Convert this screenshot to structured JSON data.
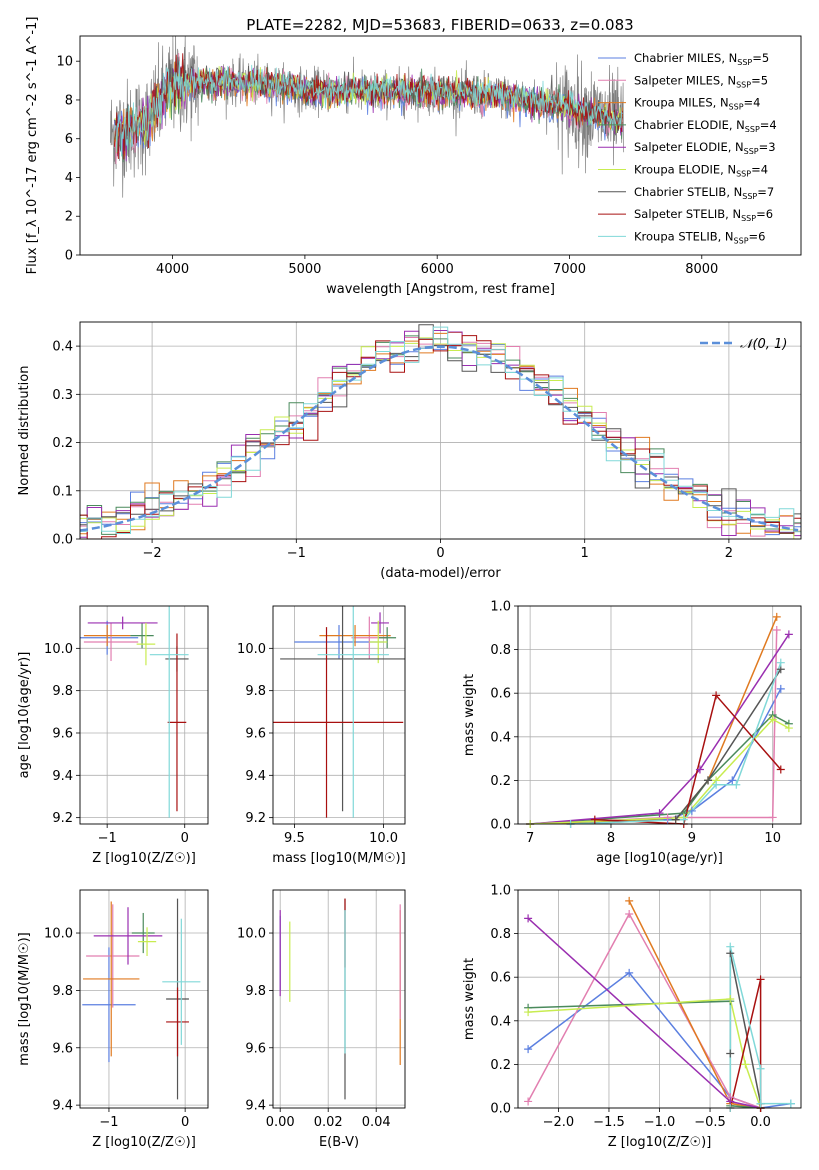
{
  "figure_title": "PLATE=2282, MJD=53683, FIBERID=0633, z=0.083",
  "models": [
    {
      "name": "Chabrier MILES",
      "nssp": "5",
      "color": "#5b7fe0"
    },
    {
      "name": "Salpeter MILES",
      "nssp": "5",
      "color": "#e27fb0"
    },
    {
      "name": "Kroupa MILES",
      "nssp": "4",
      "color": "#e07a20"
    },
    {
      "name": "Chabrier ELODIE",
      "nssp": "4",
      "color": "#4a8a5c"
    },
    {
      "name": "Salpeter ELODIE",
      "nssp": "3",
      "color": "#9a2fb0"
    },
    {
      "name": "Kroupa ELODIE",
      "nssp": "4",
      "color": "#c8ec50"
    },
    {
      "name": "Chabrier STELIB",
      "nssp": "7",
      "color": "#555555"
    },
    {
      "name": "Salpeter STELIB",
      "nssp": "6",
      "color": "#a81010"
    },
    {
      "name": "Kroupa STELIB",
      "nssp": "6",
      "color": "#80d8d8"
    }
  ],
  "chart_data": [
    {
      "id": "spectrum",
      "type": "line",
      "xlabel": "wavelength [Angstrom, rest frame]",
      "ylabel": "Flux [f_λ 10^-17 erg cm^-2 s^-1 A^-1]",
      "xlim": [
        3300,
        8750
      ],
      "ylim": [
        0,
        11.3
      ],
      "xticks": [
        4000,
        5000,
        6000,
        7000,
        8000
      ],
      "yticks": [
        0,
        2,
        4,
        6,
        8,
        10
      ],
      "grid": false,
      "legend_position": "upper-right",
      "data_color": "#808080",
      "data_range": [
        3530,
        7410
      ],
      "model_range": [
        3560,
        7400
      ],
      "continuum": {
        "wavelength": [
          3550,
          3800,
          4000,
          4300,
          4600,
          5000,
          5500,
          6000,
          6500,
          6800,
          7000,
          7400
        ],
        "flux": [
          6.2,
          6.8,
          8.8,
          8.9,
          8.9,
          8.5,
          8.4,
          8.4,
          8.2,
          7.8,
          7.6,
          6.8
        ]
      }
    },
    {
      "id": "residual_histogram",
      "type": "histogram",
      "xlabel": "(data-model)/error",
      "ylabel": "Normed distribution",
      "xlim": [
        -2.5,
        2.5
      ],
      "ylim": [
        0,
        0.45
      ],
      "xticks": [
        -2,
        -1,
        0,
        1,
        2
      ],
      "yticks": [
        0.0,
        0.1,
        0.2,
        0.3,
        0.4
      ],
      "yticks_labels": [
        "0.0",
        "0.1",
        "0.2",
        "0.3",
        "0.4"
      ],
      "grid": true,
      "bin_width": 0.1,
      "reference_curve": {
        "label": "𝒩(0, 1)",
        "mean": 0,
        "sigma": 1,
        "color": "#5b8fd9",
        "dash": "8,4"
      },
      "legend_position": "upper-right"
    },
    {
      "id": "age_vs_Z",
      "type": "errorbar",
      "xlabel": "Z [log10(Z/Z☉)]",
      "ylabel": "age  [log10(age/yr)]",
      "xlim": [
        -1.35,
        0.3
      ],
      "ylim": [
        9.17,
        10.2
      ],
      "xticks": [
        -1,
        0
      ],
      "yticks": [
        9.2,
        9.4,
        9.6,
        9.8,
        10.0
      ],
      "yticks_labels": [
        "9.2",
        "9.4",
        "9.6",
        "9.8",
        "10.0"
      ],
      "grid": true,
      "points": [
        {
          "model": 0,
          "x": -1.0,
          "xerr": 0.4,
          "y": 10.05,
          "yerr": 0.08
        },
        {
          "model": 1,
          "x": -0.95,
          "xerr": 0.35,
          "y": 10.03,
          "yerr": 0.09
        },
        {
          "model": 2,
          "x": -1.0,
          "xerr": 0.3,
          "y": 10.06,
          "yerr": 0.05
        },
        {
          "model": 3,
          "x": -0.55,
          "xerr": 0.15,
          "y": 10.06,
          "yerr": 0.06
        },
        {
          "model": 4,
          "x": -0.8,
          "xerr": 0.45,
          "y": 10.12,
          "yerr": 0.03
        },
        {
          "model": 5,
          "x": -0.5,
          "xerr": 0.12,
          "y": 10.02,
          "yerr": 0.1
        },
        {
          "model": 6,
          "x": -0.1,
          "xerr": 0.15,
          "y": 9.95,
          "yerr": 0.06
        },
        {
          "model": 7,
          "x": -0.1,
          "xerr": 0.12,
          "y": 9.65,
          "yerr": 0.42
        },
        {
          "model": 8,
          "x": -0.2,
          "xerr": 0.25,
          "y": 9.97,
          "yerr": 0.77
        }
      ]
    },
    {
      "id": "age_vs_mass",
      "type": "errorbar",
      "xlabel": "mass [log10(M/M☉)]",
      "ylabel": "",
      "xlim": [
        9.38,
        10.12
      ],
      "ylim": [
        9.17,
        10.2
      ],
      "xticks": [
        9.5,
        10.0
      ],
      "xticks_labels": [
        "9.5",
        "10.0"
      ],
      "yticks": [
        9.2,
        9.4,
        9.6,
        9.8,
        10.0
      ],
      "yticks_labels": [
        "9.2",
        "9.4",
        "9.6",
        "9.8",
        "10.0"
      ],
      "grid": true,
      "points": [
        {
          "model": 0,
          "x": 9.75,
          "xerr": 0.25,
          "y": 10.03,
          "yerr": 0.08
        },
        {
          "model": 1,
          "x": 9.92,
          "xerr": 0.1,
          "y": 10.05,
          "yerr": 0.1
        },
        {
          "model": 2,
          "x": 9.84,
          "xerr": 0.2,
          "y": 10.06,
          "yerr": 0.05
        },
        {
          "model": 3,
          "x": 10.02,
          "xerr": 0.05,
          "y": 10.05,
          "yerr": 0.05
        },
        {
          "model": 4,
          "x": 9.98,
          "xerr": 0.05,
          "y": 10.12,
          "yerr": 0.05
        },
        {
          "model": 5,
          "x": 9.97,
          "xerr": 0.05,
          "y": 10.03,
          "yerr": 0.1
        },
        {
          "model": 6,
          "x": 9.77,
          "xerr": 0.35,
          "y": 9.95,
          "yerr": 0.72
        },
        {
          "model": 7,
          "x": 9.68,
          "xerr": 0.43,
          "y": 9.65,
          "yerr": 0.45
        },
        {
          "model": 8,
          "x": 9.83,
          "xerr": 0.2,
          "y": 9.97,
          "yerr": 0.77
        }
      ]
    },
    {
      "id": "mass_weight_vs_age",
      "type": "line",
      "xlabel": "age  [log10(age/yr)]",
      "ylabel": "mass weight",
      "xlim": [
        6.85,
        10.35
      ],
      "ylim": [
        0,
        1.0
      ],
      "xticks": [
        7,
        8,
        9,
        10
      ],
      "yticks": [
        0.0,
        0.2,
        0.4,
        0.6,
        0.8,
        1.0
      ],
      "yticks_labels": [
        "0.0",
        "0.2",
        "0.4",
        "0.6",
        "0.8",
        "1.0"
      ],
      "grid": true,
      "marker": "+",
      "series": [
        {
          "model": 0,
          "x": [
            7.0,
            8.7,
            9.0,
            9.5,
            10.1
          ],
          "y": [
            0.0,
            0.02,
            0.06,
            0.2,
            0.62
          ]
        },
        {
          "model": 1,
          "x": [
            7.0,
            8.7,
            10.0,
            10.05
          ],
          "y": [
            0.0,
            0.03,
            0.03,
            0.89
          ]
        },
        {
          "model": 2,
          "x": [
            7.0,
            8.8,
            9.2,
            10.05
          ],
          "y": [
            0.0,
            0.02,
            0.2,
            0.95
          ]
        },
        {
          "model": 3,
          "x": [
            7.0,
            8.9,
            9.2,
            10.0,
            10.2
          ],
          "y": [
            0.0,
            0.05,
            0.2,
            0.5,
            0.46
          ]
        },
        {
          "model": 4,
          "x": [
            7.0,
            8.6,
            9.1,
            10.2
          ],
          "y": [
            0.0,
            0.05,
            0.25,
            0.87
          ]
        },
        {
          "model": 5,
          "x": [
            7.0,
            8.9,
            9.3,
            10.0,
            10.2
          ],
          "y": [
            0.0,
            0.03,
            0.2,
            0.48,
            0.44
          ]
        },
        {
          "model": 6,
          "x": [
            7.5,
            8.8,
            9.2,
            10.1
          ],
          "y": [
            0.0,
            0.02,
            0.2,
            0.71
          ]
        },
        {
          "model": 7,
          "x": [
            7.8,
            8.9,
            9.3,
            10.1
          ],
          "y": [
            0.02,
            0.0,
            0.59,
            0.25
          ]
        },
        {
          "model": 8,
          "x": [
            7.5,
            8.9,
            9.3,
            9.55,
            10.1
          ],
          "y": [
            0.0,
            0.02,
            0.18,
            0.18,
            0.74
          ]
        }
      ]
    },
    {
      "id": "mass_vs_Z",
      "type": "errorbar",
      "xlabel": "Z [log10(Z/Z☉)]",
      "ylabel": "mass [log10(M/M☉)]",
      "xlim": [
        -1.38,
        0.3
      ],
      "ylim": [
        9.39,
        10.15
      ],
      "xticks": [
        -1,
        0
      ],
      "yticks": [
        9.4,
        9.6,
        9.8,
        10.0
      ],
      "yticks_labels": [
        "9.4",
        "9.6",
        "9.8",
        "10.0"
      ],
      "grid": true,
      "points": [
        {
          "model": 0,
          "x": -1.0,
          "xerr": 0.35,
          "y": 9.75,
          "yerr": 0.2
        },
        {
          "model": 1,
          "x": -0.95,
          "xerr": 0.35,
          "y": 9.92,
          "yerr": 0.18
        },
        {
          "model": 2,
          "x": -0.97,
          "xerr": 0.37,
          "y": 9.84,
          "yerr": 0.27
        },
        {
          "model": 3,
          "x": -0.55,
          "xerr": 0.15,
          "y": 10.0,
          "yerr": 0.07
        },
        {
          "model": 4,
          "x": -0.75,
          "xerr": 0.45,
          "y": 9.99,
          "yerr": 0.1
        },
        {
          "model": 5,
          "x": -0.5,
          "xerr": 0.12,
          "y": 9.97,
          "yerr": 0.05
        },
        {
          "model": 6,
          "x": -0.1,
          "xerr": 0.15,
          "y": 9.77,
          "yerr": 0.35
        },
        {
          "model": 7,
          "x": -0.1,
          "xerr": 0.15,
          "y": 9.69,
          "yerr": 0.12
        },
        {
          "model": 8,
          "x": -0.05,
          "xerr": 0.25,
          "y": 9.83,
          "yerr": 0.22
        }
      ]
    },
    {
      "id": "mass_vs_EBV",
      "type": "errorbar",
      "xlabel": "E(B-V)",
      "ylabel": "",
      "xlim": [
        -0.003,
        0.052
      ],
      "ylim": [
        9.39,
        10.15
      ],
      "xticks": [
        0.0,
        0.02,
        0.04
      ],
      "xticks_labels": [
        "0.00",
        "0.02",
        "0.04"
      ],
      "yticks": [
        9.4,
        9.6,
        9.8,
        10.0
      ],
      "yticks_labels": [
        "9.4",
        "9.6",
        "9.8",
        "10.0"
      ],
      "grid": true,
      "points": [
        {
          "model": 0,
          "x": 0.0,
          "y": 9.93,
          "yerr": 0.13
        },
        {
          "model": 2,
          "x": 0.05,
          "y": 9.81,
          "yerr": 0.27
        },
        {
          "model": 4,
          "x": 0.0,
          "y": 9.93,
          "yerr": 0.15
        },
        {
          "model": 5,
          "x": 0.004,
          "y": 9.9,
          "yerr": 0.14
        },
        {
          "model": 6,
          "x": 0.027,
          "y": 9.77,
          "yerr": 0.35
        },
        {
          "model": 7,
          "x": 0.027,
          "y": 10.0,
          "yerr": 0.12
        },
        {
          "model": 8,
          "x": 0.027,
          "y": 9.83,
          "yerr": 0.25
        },
        {
          "model": 1,
          "x": 0.05,
          "y": 9.9,
          "yerr": 0.2
        }
      ]
    },
    {
      "id": "mass_weight_vs_Z",
      "type": "line",
      "xlabel": "Z [log10(Z/Z☉)]",
      "ylabel": "mass weight",
      "xlim": [
        -2.4,
        0.4
      ],
      "ylim": [
        0,
        1.0
      ],
      "xticks": [
        -2.0,
        -1.5,
        -1.0,
        -0.5,
        0.0
      ],
      "xticks_labels": [
        "−2.0",
        "−1.5",
        "−1.0",
        "−0.5",
        "0.0"
      ],
      "yticks": [
        0.0,
        0.2,
        0.4,
        0.6,
        0.8,
        1.0
      ],
      "yticks_labels": [
        "0.0",
        "0.2",
        "0.4",
        "0.6",
        "0.8",
        "1.0"
      ],
      "grid": true,
      "marker": "+",
      "series": [
        {
          "model": 0,
          "x": [
            -2.3,
            -1.3,
            -0.3,
            0.0,
            0.3
          ],
          "y": [
            0.27,
            0.62,
            0.05,
            0.0,
            0.02
          ]
        },
        {
          "model": 1,
          "x": [
            -2.3,
            -1.3,
            -0.3,
            0.0
          ],
          "y": [
            0.03,
            0.89,
            0.05,
            0.0
          ]
        },
        {
          "model": 2,
          "x": [
            -1.3,
            -0.3,
            0.0
          ],
          "y": [
            0.95,
            0.02,
            0.0
          ]
        },
        {
          "model": 3,
          "x": [
            -2.3,
            -0.3,
            -0.3,
            0.0
          ],
          "y": [
            0.46,
            0.49,
            0.01,
            0.0
          ]
        },
        {
          "model": 4,
          "x": [
            -2.3,
            -0.3,
            0.0
          ],
          "y": [
            0.87,
            0.03,
            0.0
          ]
        },
        {
          "model": 5,
          "x": [
            -2.3,
            -0.3,
            -0.15,
            0.0
          ],
          "y": [
            0.44,
            0.5,
            0.2,
            0.0
          ]
        },
        {
          "model": 6,
          "x": [
            -0.3,
            -0.3,
            0.0,
            0.0
          ],
          "y": [
            0.25,
            0.71,
            0.02,
            0.0
          ]
        },
        {
          "model": 7,
          "x": [
            -0.3,
            0.0,
            0.0
          ],
          "y": [
            0.0,
            0.59,
            0.0
          ]
        },
        {
          "model": 8,
          "x": [
            -0.3,
            -0.3,
            0.0,
            0.0,
            0.3
          ],
          "y": [
            0.0,
            0.74,
            0.18,
            0.02,
            0.02
          ]
        }
      ]
    }
  ]
}
